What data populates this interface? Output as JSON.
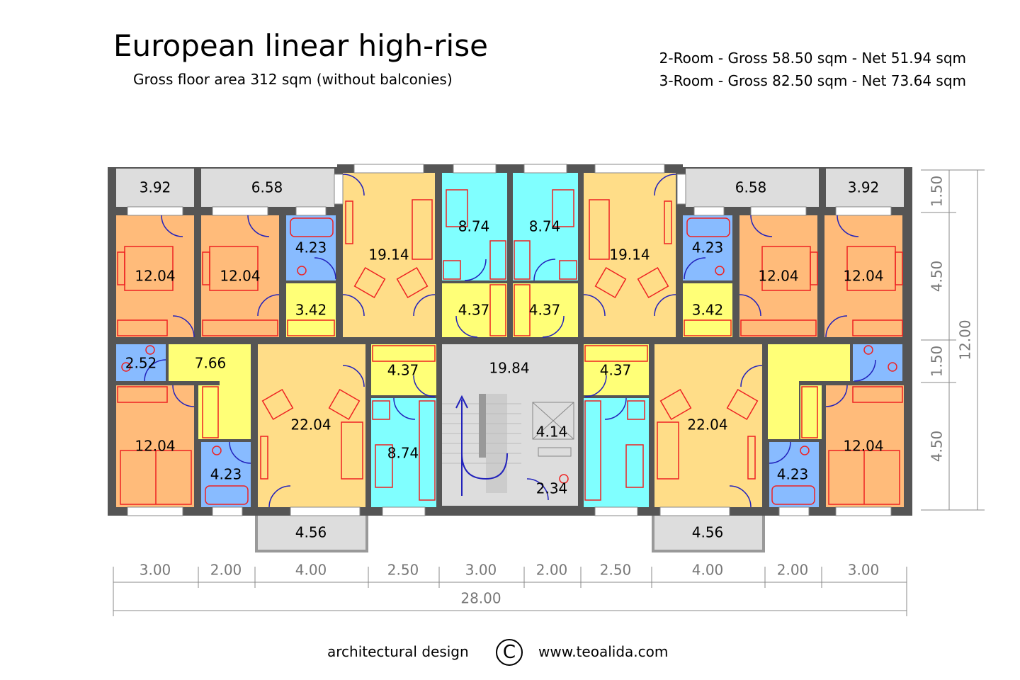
{
  "header": {
    "title": "European linear high-rise",
    "subtitle": "Gross floor area 312 sqm (without balconies)",
    "spec_2room": "2-Room - Gross 58.50 sqm - Net 51.94 sqm",
    "spec_3room": "3-Room - Gross 82.50 sqm - Net 73.64 sqm"
  },
  "colors": {
    "bedroom": "#ffbb7a",
    "living": "#ffdd88",
    "kitchen": "#80ffff",
    "bath": "#88bbff",
    "hall": "#ffff77",
    "balcony": "#dddddd",
    "stair": "#dddddd",
    "wall": "#555555",
    "furniture": "#ee2222",
    "door": "#2222bb"
  },
  "rooms": {
    "balcony_tl1": "3.92",
    "balcony_tl2": "6.58",
    "balcony_tr2": "6.58",
    "balcony_tr1": "3.92",
    "bed_tl1": "12.04",
    "bed_tl2": "12.04",
    "bath_tl": "4.23",
    "hall_tl": "3.42",
    "living_tl": "19.14",
    "kitchen_tl": "8.74",
    "kitchen_tr": "8.74",
    "living_tr": "19.14",
    "bath_tr": "4.23",
    "hall_tr": "3.42",
    "bed_tr2": "12.04",
    "bed_tr1": "12.04",
    "hall_mtl": "4.37",
    "hall_mtr": "4.37",
    "wc_ml": "2.52",
    "hall_ml": "7.66",
    "hall_cl": "4.37",
    "stair": "19.84",
    "hall_cr": "4.37",
    "bed_bl": "12.04",
    "bath_bl": "4.23",
    "living_bl": "22.04",
    "kitchen_bl": "8.74",
    "elevator": "4.14",
    "shaft": "2.34",
    "living_br": "22.04",
    "bath_br": "4.23",
    "bed_br": "12.04",
    "balcony_bl": "4.56",
    "balcony_br": "4.56"
  },
  "dimensions": {
    "bottom": [
      "3.00",
      "2.00",
      "4.00",
      "2.50",
      "3.00",
      "2.00",
      "2.50",
      "4.00",
      "2.00",
      "3.00"
    ],
    "total_width": "28.00",
    "right": [
      "1.50",
      "4.50",
      "1.50",
      "4.50"
    ],
    "total_depth": "12.00"
  },
  "footer": {
    "left": "architectural design",
    "symbol": "C",
    "right": "www.teoalida.com"
  }
}
